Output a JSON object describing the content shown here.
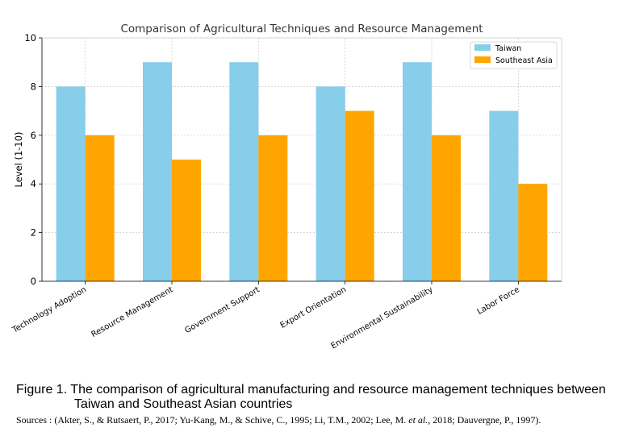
{
  "chart_data": {
    "type": "bar",
    "title": "Comparison of Agricultural Techniques and Resource Management",
    "xlabel": "",
    "ylabel": "Level (1-10)",
    "ylim": [
      0,
      10
    ],
    "yticks": [
      "0",
      "2",
      "4",
      "6",
      "8",
      "10"
    ],
    "grid": true,
    "legend_position": "top-right",
    "categories": [
      "Technology Adoption",
      "Resource Management",
      "Government Support",
      "Export Orientation",
      "Environmental Sustainability",
      "Labor Force"
    ],
    "series": [
      {
        "name": "Taiwan",
        "values": [
          8,
          9,
          9,
          8,
          9,
          7
        ],
        "color": "#87ceeb"
      },
      {
        "name": "Southeast Asia",
        "values": [
          6,
          5,
          6,
          7,
          6,
          4
        ],
        "color": "#ffa500"
      }
    ]
  },
  "caption": {
    "line1": "Figure 1. The comparison of agricultural manufacturing and resource management techniques between",
    "line2": "Taiwan and Southeast Asian countries"
  },
  "sources": {
    "part1": "Sources : (Akter, S., & Rutsaert, P., 2017; Yu-Kang, M., & Schive, C., 1995; Li, T.M., 2002; Lee, M. ",
    "italic": "et al.",
    "part2": ", 2018; Dauvergne, P., 1997)."
  }
}
